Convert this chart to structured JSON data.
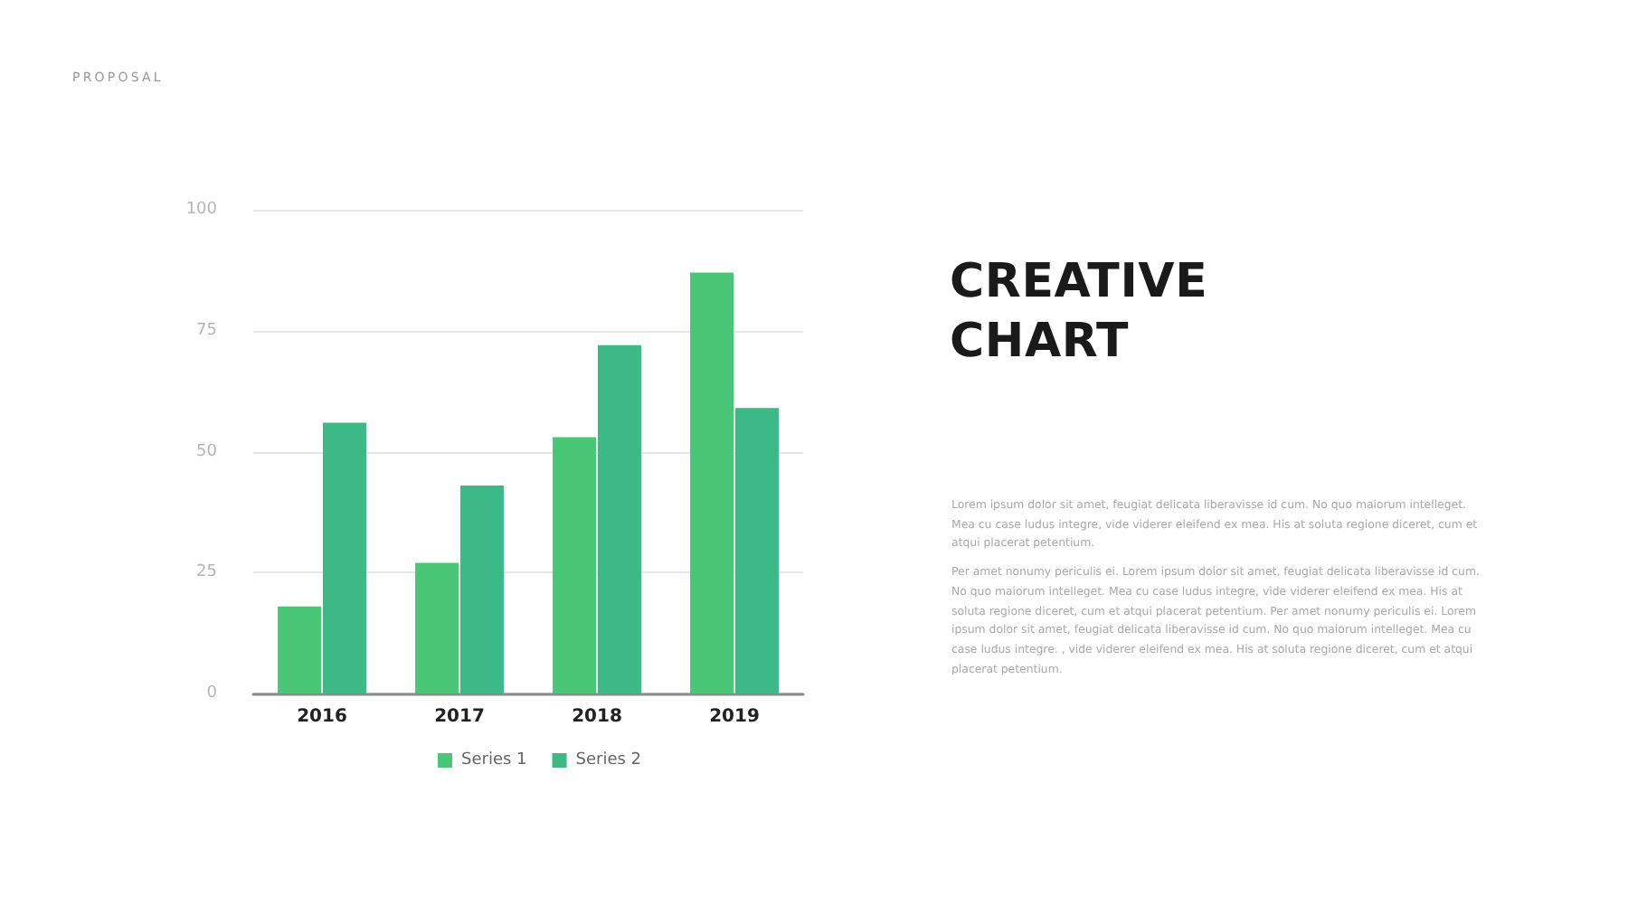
{
  "chart_data": {
    "type": "bar",
    "title": "CREATIVE CHART",
    "categories": [
      "2016",
      "2017",
      "2018",
      "2019"
    ],
    "series": [
      {
        "name": "Series 1",
        "color": "#4ac776",
        "values": [
          18,
          27,
          53,
          87
        ]
      },
      {
        "name": "Series 2",
        "color": "#3db887",
        "values": [
          56,
          43,
          72,
          59
        ]
      }
    ],
    "ylim": [
      0,
      100
    ],
    "yticks": [
      0,
      25,
      50,
      75,
      100
    ],
    "grid": "y",
    "legend": "bottom",
    "annotations": [
      "PROPOSAL",
      "Lorem ipsum dolor sit amet, feugiat delicata liberavisse id cum. No quo maiorum intelleget. Mea cu case ludus integre, vide viderer eleifend ex mea. His at soluta regione diceret, cum et atqui placerat petentium.",
      "Per amet nonumy periculis ei. Lorem ipsum dolor sit amet, feugiat delicata liberavisse id cum. No quo maiorum intelleget. Mea cu case ludus integre, vide viderer eleifend ex mea. His at soluta regione diceret, cum et atqui placerat petentium. Per amet nonumy periculis ei. Lorem ipsum dolor sit amet, feugiat delicata liberavisse id cum. No quo maiorum intelleget. Mea cu case ludus integre. , vide viderer eleifend ex mea. His at soluta regione diceret, cum et atqui placerat petentium."
    ]
  }
}
